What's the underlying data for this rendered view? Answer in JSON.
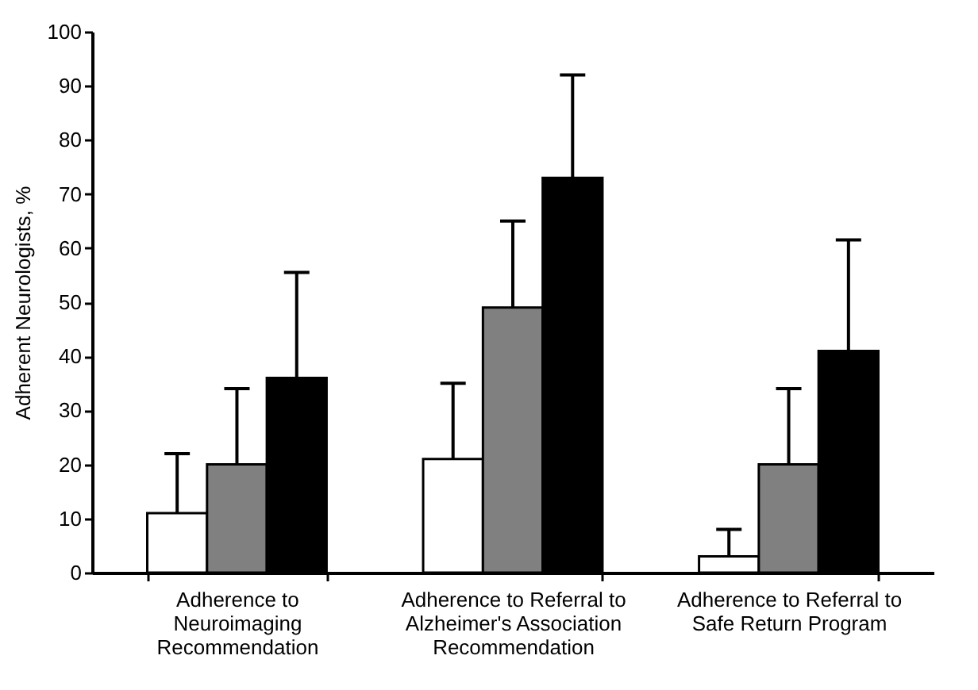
{
  "chart_data": {
    "type": "bar",
    "ylabel": "Adherent Neurologists, %",
    "categories": [
      "Adherence to Neuroimaging Recommendation",
      "Adherence to Referral to Alzheimer's Association Recommendation",
      "Adherence to Referral to Safe Return Program"
    ],
    "series": [
      {
        "color": "#ffffff",
        "values": [
          11,
          21,
          3
        ],
        "errors": [
          [
            11,
            22
          ],
          [
            21,
            35
          ],
          [
            3,
            8
          ]
        ]
      },
      {
        "color": "#808080",
        "values": [
          20,
          49,
          20
        ],
        "errors": [
          [
            20,
            34
          ],
          [
            49,
            65
          ],
          [
            20,
            34
          ]
        ]
      },
      {
        "color": "#000000",
        "values": [
          36,
          73,
          41
        ],
        "errors": [
          [
            36,
            55.5
          ],
          [
            73,
            92
          ],
          [
            41,
            61.5
          ]
        ]
      }
    ],
    "ylim": [
      0,
      100
    ],
    "yticks": [
      0,
      10,
      20,
      30,
      40,
      50,
      60,
      70,
      80,
      90,
      100
    ],
    "grid": false,
    "legend": false
  }
}
